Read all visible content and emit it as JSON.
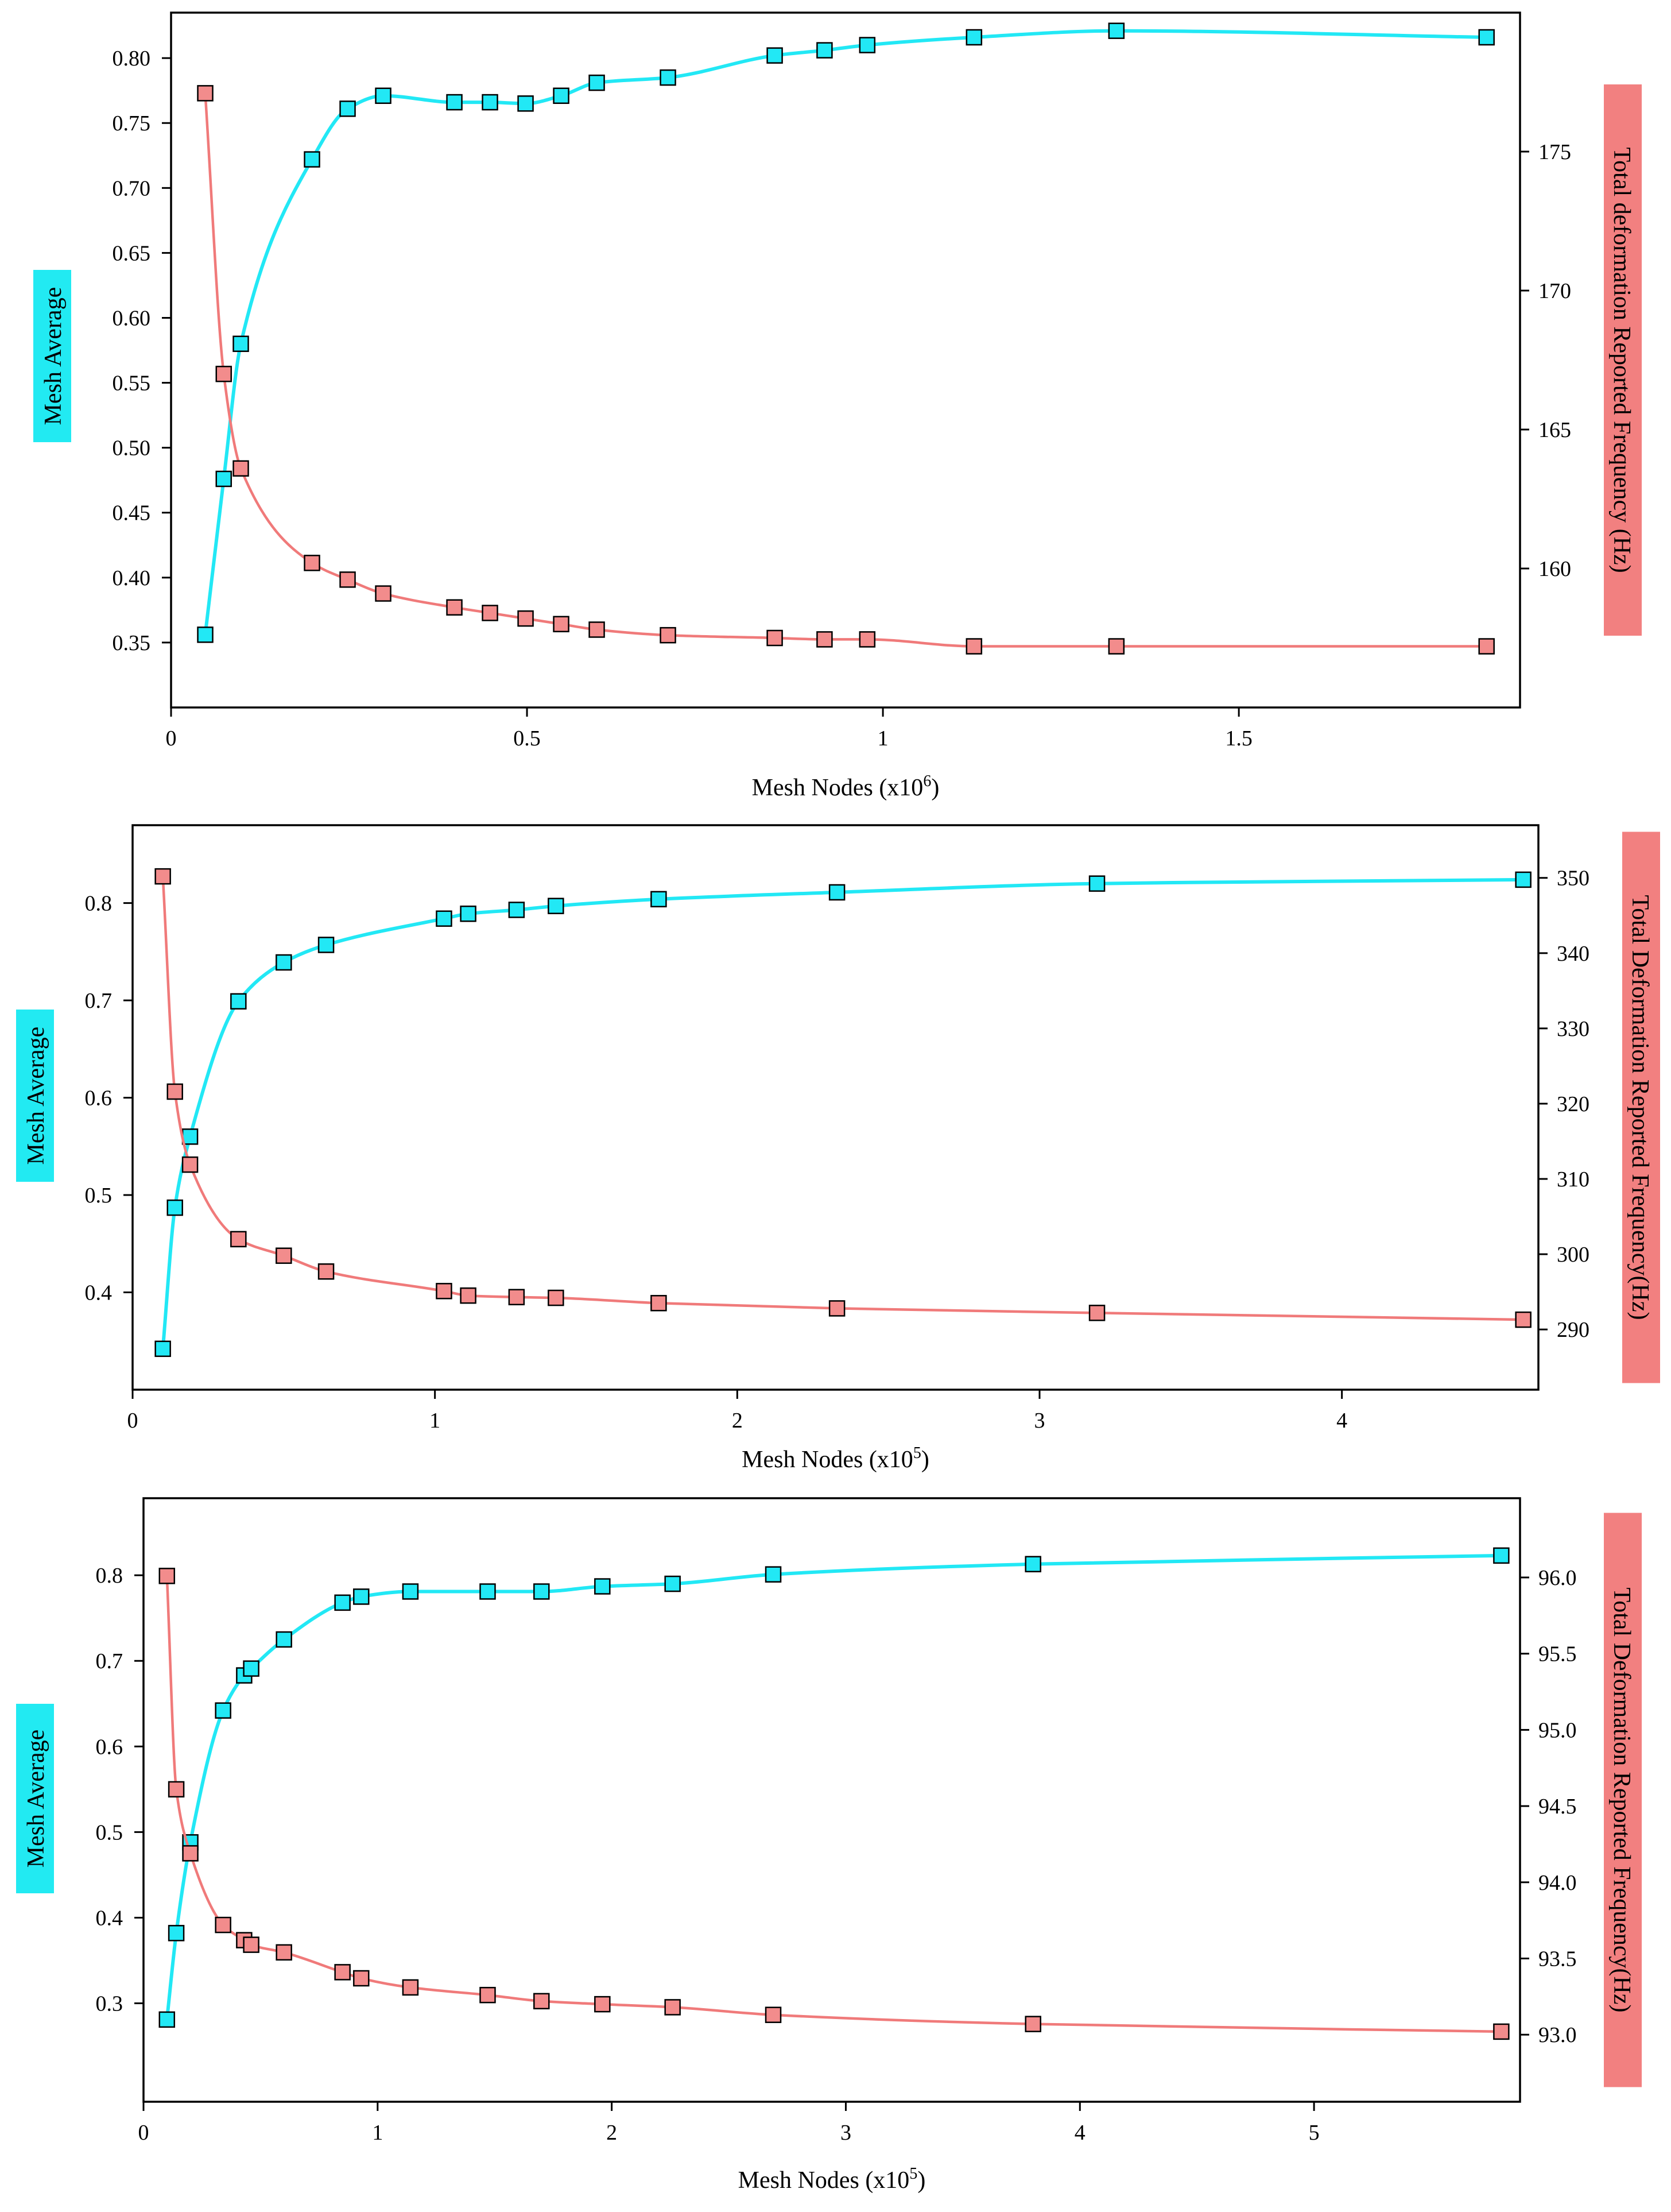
{
  "colors": {
    "cyan": "#00E5FF",
    "cyan_series": "#22E8F5",
    "red_series": "#F07A7A",
    "red_marker": "#F28C8C",
    "red_label_bg": "#F28080",
    "cyan_label_bg": "#22EAF2",
    "axis": "#000000"
  },
  "chart_data": [
    {
      "type": "line",
      "title": "",
      "xlabel": "Mesh Nodes (x10",
      "xlabel_sup": "6",
      "ylabel_left": "Mesh Average",
      "ylabel_right": "Total deformation Reported Frequency (Hz)",
      "xlim": [
        0,
        1.895
      ],
      "ylim_left": [
        0.3,
        0.835
      ],
      "ylim_right": [
        155.0,
        180.0
      ],
      "xticks": [
        {
          "value": 0,
          "label": "0"
        },
        {
          "value": 0.5,
          "label": "0.5"
        },
        {
          "value": 1,
          "label": "1"
        },
        {
          "value": 1.5,
          "label": "1.5"
        }
      ],
      "yticks_left": [
        {
          "value": 0.35,
          "label": "0.35"
        },
        {
          "value": 0.4,
          "label": "0.40"
        },
        {
          "value": 0.45,
          "label": "0.45"
        },
        {
          "value": 0.5,
          "label": "0.50"
        },
        {
          "value": 0.55,
          "label": "0.55"
        },
        {
          "value": 0.6,
          "label": "0.60"
        },
        {
          "value": 0.65,
          "label": "0.65"
        },
        {
          "value": 0.7,
          "label": "0.70"
        },
        {
          "value": 0.75,
          "label": "0.75"
        },
        {
          "value": 0.8,
          "label": "0.80"
        }
      ],
      "yticks_right": [
        {
          "value": 160,
          "label": "160"
        },
        {
          "value": 165,
          "label": "165"
        },
        {
          "value": 170,
          "label": "170"
        },
        {
          "value": 175,
          "label": "175"
        }
      ],
      "series": [
        {
          "name": "Mesh Average",
          "axis": "left",
          "color": "cyan",
          "x": [
            0.048,
            0.074,
            0.098,
            0.198,
            0.248,
            0.298,
            0.398,
            0.448,
            0.498,
            0.548,
            0.598,
            0.698,
            0.848,
            0.918,
            0.978,
            1.128,
            1.328,
            1.848
          ],
          "y": [
            0.356,
            0.476,
            0.58,
            0.722,
            0.761,
            0.771,
            0.766,
            0.766,
            0.765,
            0.771,
            0.781,
            0.785,
            0.802,
            0.806,
            0.81,
            0.816,
            0.821,
            0.816
          ]
        },
        {
          "name": "Total deformation Reported Frequency (Hz)",
          "axis": "right",
          "color": "red",
          "x": [
            0.048,
            0.074,
            0.098,
            0.198,
            0.248,
            0.298,
            0.398,
            0.448,
            0.498,
            0.548,
            0.598,
            0.698,
            0.848,
            0.918,
            0.978,
            1.128,
            1.328,
            1.848
          ],
          "y": [
            177.1,
            167.0,
            163.6,
            160.2,
            159.6,
            159.1,
            158.6,
            158.4,
            158.2,
            158.0,
            157.8,
            157.6,
            157.5,
            157.45,
            157.45,
            157.2,
            157.2,
            157.2
          ]
        }
      ]
    },
    {
      "type": "line",
      "title": "",
      "xlabel": "Mesh Nodes (x10",
      "xlabel_sup": "5",
      "ylabel_left": "Mesh Average",
      "ylabel_right": "Total Deformation Reported Frequency(Hz)",
      "xlim": [
        0,
        4.65
      ],
      "ylim_left": [
        0.3,
        0.88
      ],
      "ylim_right": [
        282.0,
        357.0
      ],
      "xticks": [
        {
          "value": 0,
          "label": "0"
        },
        {
          "value": 1,
          "label": "1"
        },
        {
          "value": 2,
          "label": "2"
        },
        {
          "value": 3,
          "label": "3"
        },
        {
          "value": 4,
          "label": "4"
        }
      ],
      "yticks_left": [
        {
          "value": 0.4,
          "label": "0.4"
        },
        {
          "value": 0.5,
          "label": "0.5"
        },
        {
          "value": 0.6,
          "label": "0.6"
        },
        {
          "value": 0.7,
          "label": "0.7"
        },
        {
          "value": 0.8,
          "label": "0.8"
        }
      ],
      "yticks_right": [
        {
          "value": 290,
          "label": "290"
        },
        {
          "value": 300,
          "label": "300"
        },
        {
          "value": 310,
          "label": "310"
        },
        {
          "value": 320,
          "label": "320"
        },
        {
          "value": 330,
          "label": "330"
        },
        {
          "value": 340,
          "label": "340"
        },
        {
          "value": 350,
          "label": "350"
        }
      ],
      "series": [
        {
          "name": "Mesh Average",
          "axis": "left",
          "color": "cyan",
          "x": [
            0.1,
            0.14,
            0.19,
            0.35,
            0.5,
            0.64,
            1.03,
            1.11,
            1.27,
            1.4,
            1.74,
            2.33,
            3.19,
            4.6
          ],
          "y": [
            0.342,
            0.487,
            0.56,
            0.699,
            0.739,
            0.757,
            0.784,
            0.789,
            0.793,
            0.797,
            0.804,
            0.811,
            0.82,
            0.824
          ]
        },
        {
          "name": "Total Deformation Reported Frequency(Hz)",
          "axis": "right",
          "color": "red",
          "x": [
            0.1,
            0.14,
            0.19,
            0.35,
            0.5,
            0.64,
            1.03,
            1.11,
            1.27,
            1.4,
            1.74,
            2.33,
            3.19,
            4.6
          ],
          "y": [
            350.2,
            321.6,
            311.9,
            302.0,
            299.8,
            297.7,
            295.1,
            294.5,
            294.3,
            294.2,
            293.5,
            292.8,
            292.2,
            291.3
          ]
        }
      ]
    },
    {
      "type": "line",
      "title": "",
      "xlabel": "Mesh Nodes (x10",
      "xlabel_sup": "5",
      "ylabel_left": "Mesh Average",
      "ylabel_right": "Total Deformation Reported Frequency(Hz)",
      "xlim": [
        0,
        5.88
      ],
      "ylim_left": [
        0.185,
        0.89
      ],
      "ylim_right": [
        92.56,
        96.52
      ],
      "xticks": [
        {
          "value": 0,
          "label": "0"
        },
        {
          "value": 1,
          "label": "1"
        },
        {
          "value": 2,
          "label": "2"
        },
        {
          "value": 3,
          "label": "3"
        },
        {
          "value": 4,
          "label": "4"
        },
        {
          "value": 5,
          "label": "5"
        }
      ],
      "yticks_left": [
        {
          "value": 0.3,
          "label": "0.3"
        },
        {
          "value": 0.4,
          "label": "0.4"
        },
        {
          "value": 0.5,
          "label": "0.5"
        },
        {
          "value": 0.6,
          "label": "0.6"
        },
        {
          "value": 0.7,
          "label": "0.7"
        },
        {
          "value": 0.8,
          "label": "0.8"
        }
      ],
      "yticks_right": [
        {
          "value": 93.0,
          "label": "93.0"
        },
        {
          "value": 93.5,
          "label": "93.5"
        },
        {
          "value": 94.0,
          "label": "94.0"
        },
        {
          "value": 94.5,
          "label": "94.5"
        },
        {
          "value": 95.0,
          "label": "95.0"
        },
        {
          "value": 95.5,
          "label": "95.5"
        },
        {
          "value": 96.0,
          "label": "96.0"
        }
      ],
      "series": [
        {
          "name": "Mesh Average",
          "axis": "left",
          "color": "cyan",
          "x": [
            0.1,
            0.14,
            0.2,
            0.34,
            0.43,
            0.46,
            0.6,
            0.85,
            0.93,
            1.14,
            1.47,
            1.7,
            1.96,
            2.26,
            2.69,
            3.8,
            5.8
          ],
          "y": [
            0.281,
            0.382,
            0.488,
            0.642,
            0.683,
            0.691,
            0.725,
            0.768,
            0.775,
            0.781,
            0.781,
            0.781,
            0.787,
            0.79,
            0.801,
            0.813,
            0.823
          ]
        },
        {
          "name": "Total Deformation Reported Frequency(Hz)",
          "axis": "right",
          "color": "red",
          "x": [
            0.1,
            0.14,
            0.2,
            0.34,
            0.43,
            0.46,
            0.6,
            0.85,
            0.93,
            1.14,
            1.47,
            1.7,
            1.96,
            2.26,
            2.69,
            3.8,
            5.8
          ],
          "y": [
            96.01,
            94.61,
            94.19,
            93.72,
            93.62,
            93.59,
            93.54,
            93.41,
            93.37,
            93.31,
            93.26,
            93.22,
            93.2,
            93.18,
            93.13,
            93.07,
            93.02
          ]
        }
      ]
    }
  ]
}
